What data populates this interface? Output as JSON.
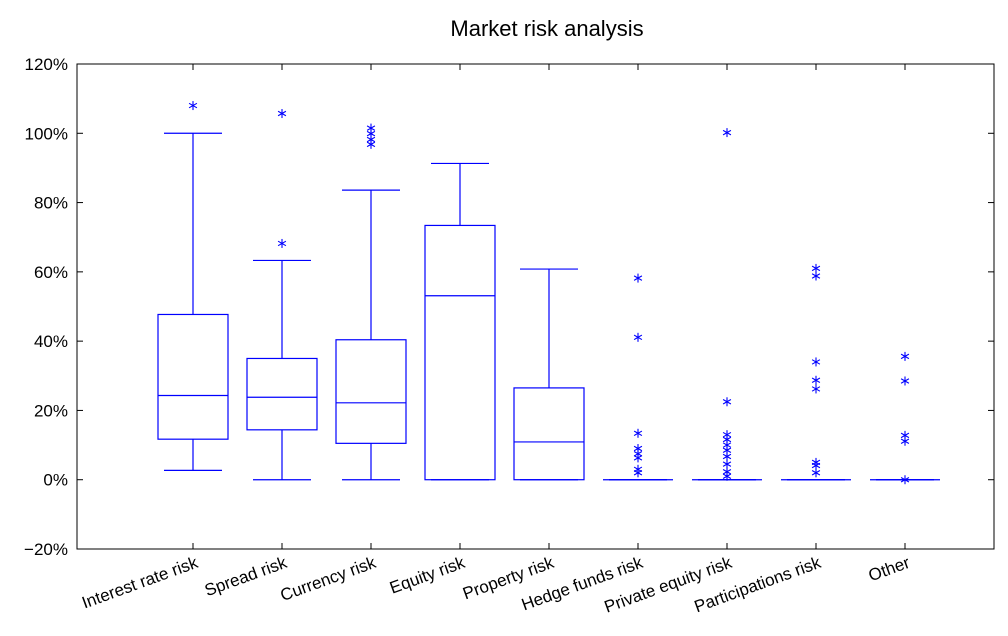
{
  "chart_data": {
    "type": "box",
    "title": "Market risk analysis",
    "xlabel": "",
    "ylabel": "",
    "ylim": [
      -20,
      120
    ],
    "yticks": [
      -20,
      0,
      20,
      40,
      60,
      80,
      100,
      120
    ],
    "ytick_labels": [
      "−20%",
      "0%",
      "20%",
      "40%",
      "60%",
      "80%",
      "100%",
      "120%"
    ],
    "grid": false,
    "color": "#0000ff",
    "categories": [
      "Interest rate risk",
      "Spread risk",
      "Currency risk",
      "Equity risk",
      "Property risk",
      "Hedge funds risk",
      "Private equity risk",
      "Participations risk",
      "Other"
    ],
    "boxes": [
      {
        "whisker_low": 2.7,
        "q1": 11.7,
        "median": 24.3,
        "q3": 47.7,
        "whisker_high": 100,
        "outliers": [
          108
        ]
      },
      {
        "whisker_low": 0,
        "q1": 14.4,
        "median": 23.8,
        "q3": 35,
        "whisker_high": 63.3,
        "outliers": [
          68.2,
          105.7
        ]
      },
      {
        "whisker_low": 0,
        "q1": 10.5,
        "median": 22.2,
        "q3": 40.4,
        "whisker_high": 83.6,
        "outliers": [
          96.8,
          98.2,
          99.9,
          101.5
        ]
      },
      {
        "whisker_low": 0,
        "q1": 0,
        "median": 53.1,
        "q3": 73.4,
        "whisker_high": 91.3,
        "outliers": []
      },
      {
        "whisker_low": 0,
        "q1": 0,
        "median": 10.9,
        "q3": 26.5,
        "whisker_high": 60.8,
        "outliers": []
      },
      {
        "whisker_low": 0,
        "q1": 0,
        "median": 0,
        "q3": 0,
        "whisker_high": 0,
        "outliers": [
          2,
          3,
          6.3,
          7.5,
          9,
          13.4,
          41.1,
          58.2
        ]
      },
      {
        "whisker_low": 0,
        "q1": 0,
        "median": 0,
        "q3": 0,
        "whisker_high": 0,
        "outliers": [
          1,
          2.3,
          4.5,
          6.7,
          8.5,
          10,
          11.6,
          13,
          22.5,
          100.2
        ]
      },
      {
        "whisker_low": 0,
        "q1": 0,
        "median": 0,
        "q3": 0,
        "whisker_high": 0,
        "outliers": [
          2,
          4.1,
          5,
          26.2,
          28.7,
          34,
          58.8,
          61
        ]
      },
      {
        "whisker_low": 0,
        "q1": 0,
        "median": 0,
        "q3": 0,
        "whisker_high": 0,
        "outliers": [
          0,
          11.1,
          12.8,
          28.5,
          35.6
        ]
      }
    ]
  }
}
